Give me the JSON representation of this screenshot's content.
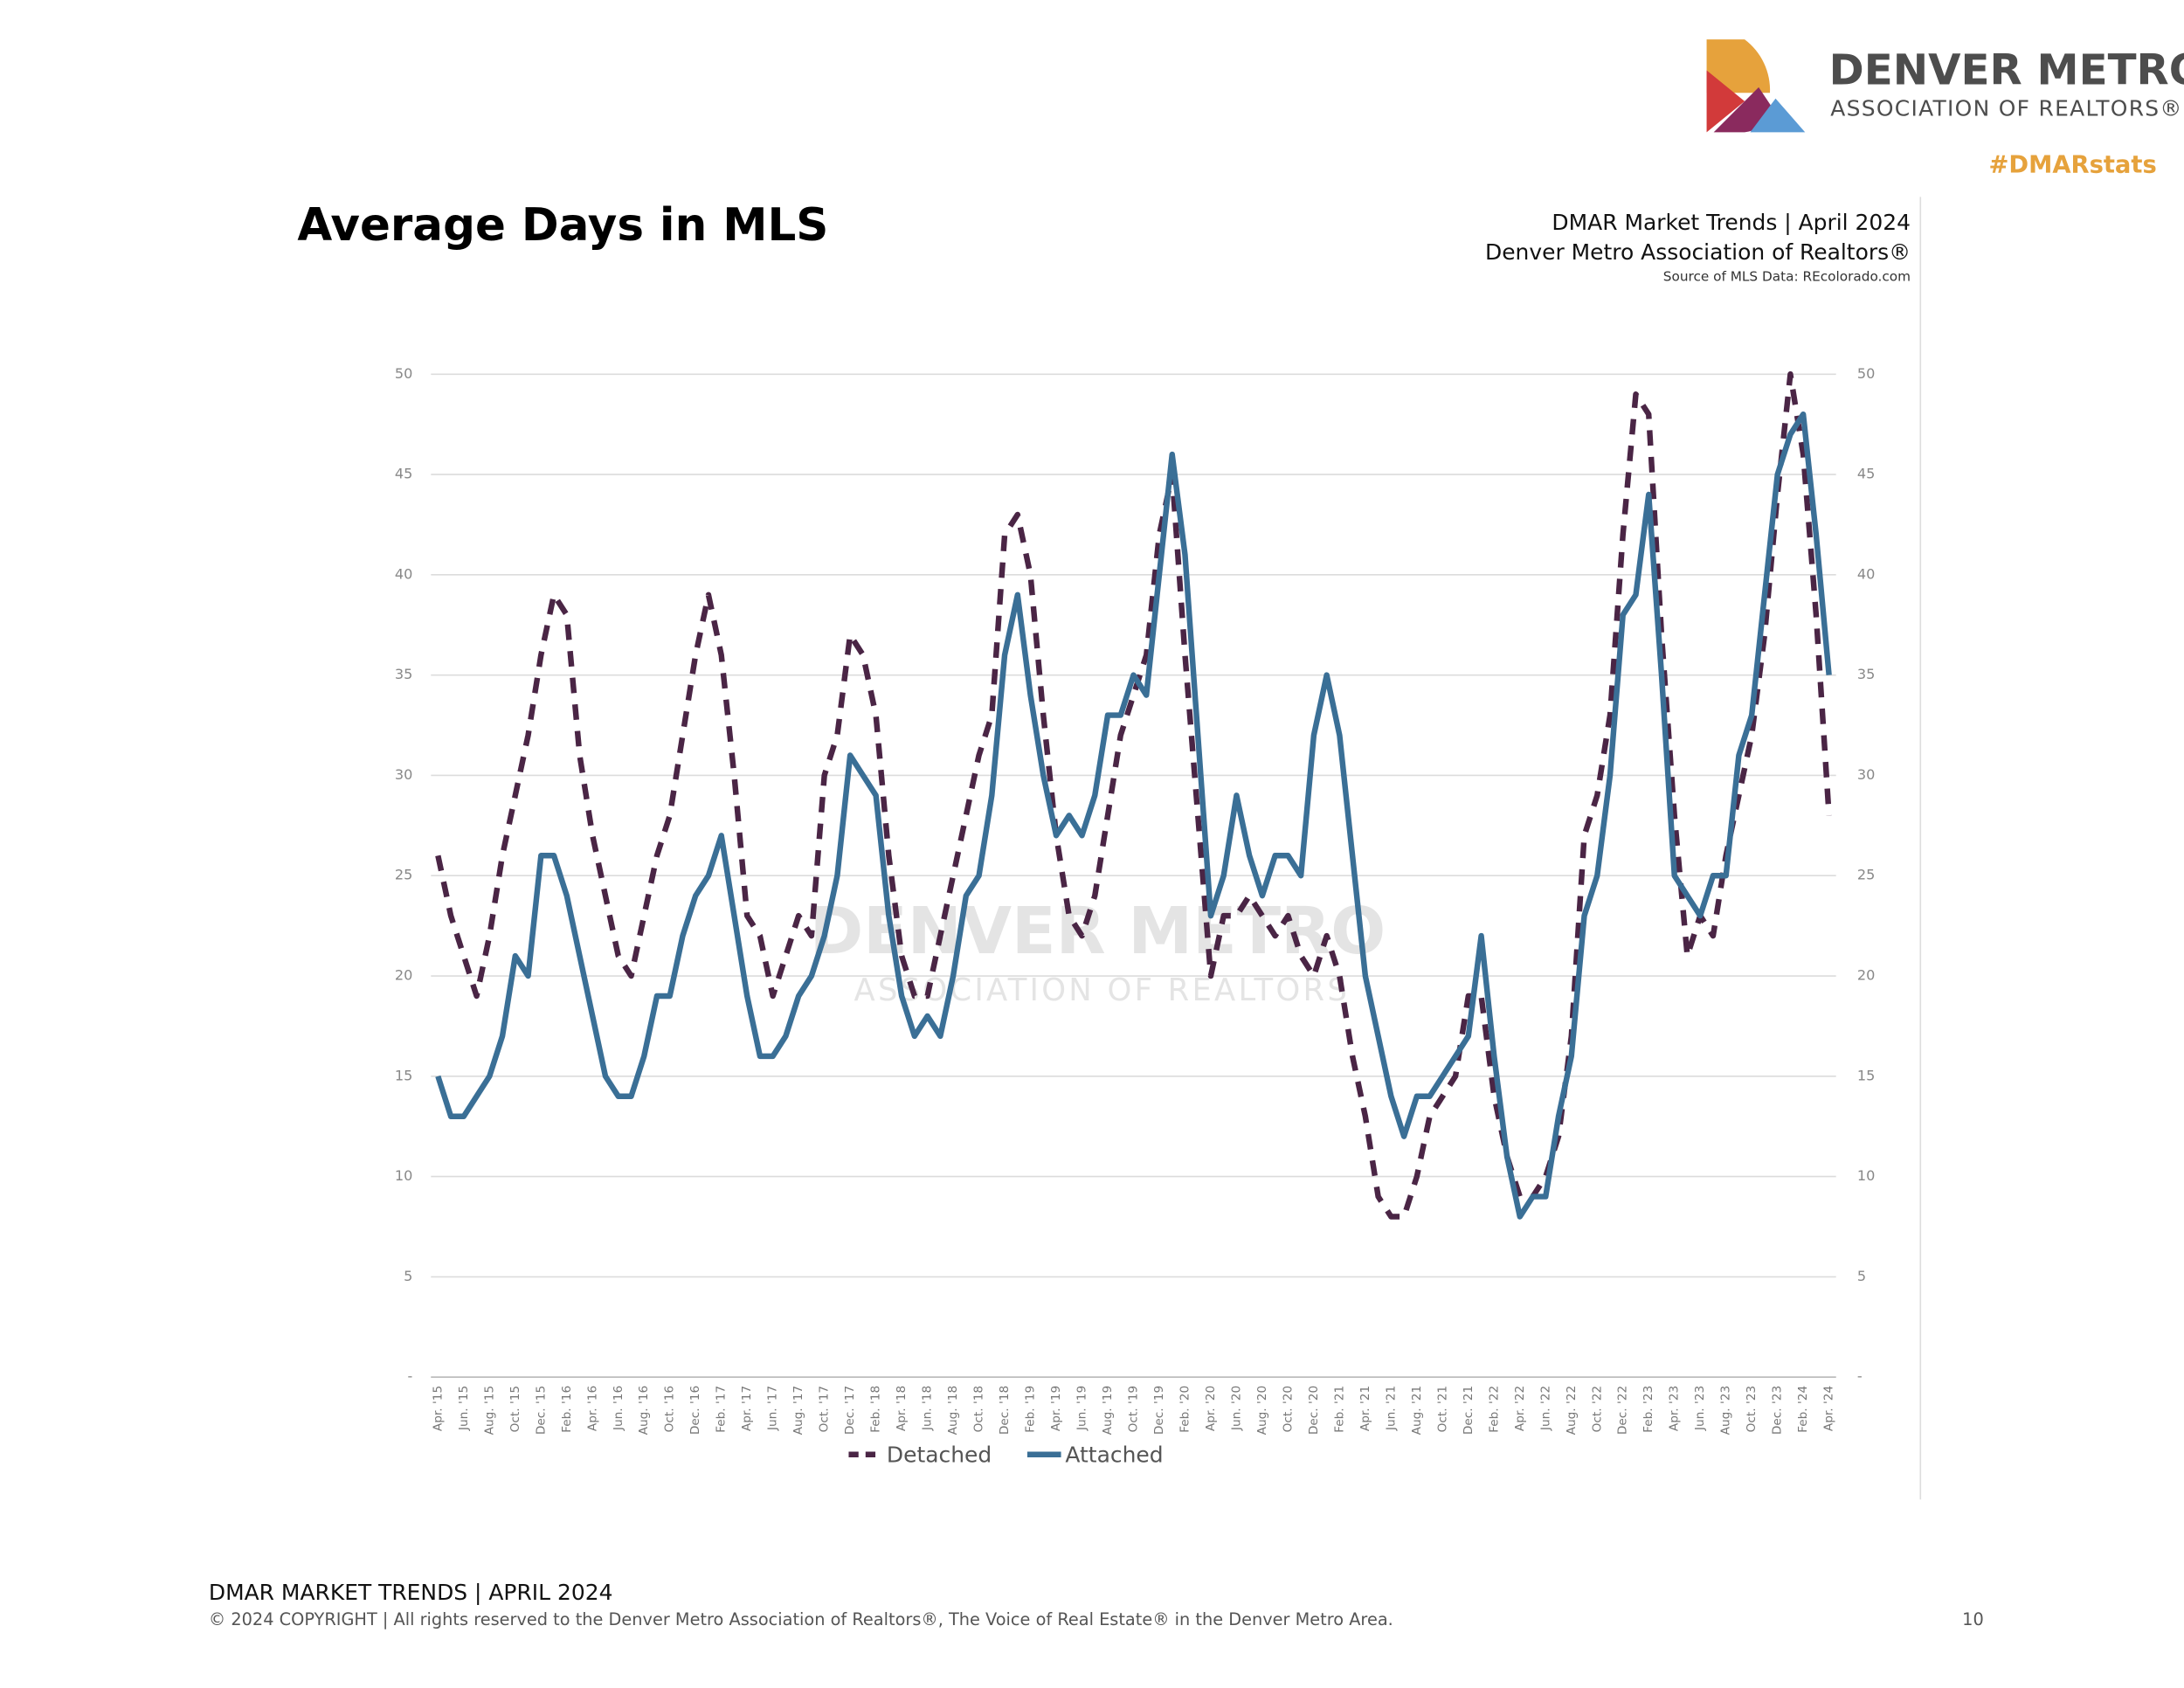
{
  "header": {
    "logo_name": "DENVER METRO",
    "logo_sub": "ASSOCIATION OF REALTORS®",
    "hashtag": "#DMARstats"
  },
  "chart_data": {
    "type": "line",
    "title": "Average Days in MLS",
    "subtitle": "DMAR Market Trends | April 2024",
    "publisher": "Denver Metro Association of Realtors®",
    "source": "Source of MLS Data: REcolorado.com",
    "watermark": [
      "DENVER METRO",
      "ASSOCIATION OF REALTORS"
    ],
    "categories": [
      "Apr. '15",
      null,
      "Jun. '15",
      null,
      "Aug. '15",
      null,
      "Oct. '15",
      null,
      "Dec. '15",
      null,
      "Feb. '16",
      null,
      "Apr. '16",
      null,
      "Jun. '16",
      null,
      "Aug. '16",
      null,
      "Oct. '16",
      null,
      "Dec. '16",
      null,
      "Feb. '17",
      null,
      "Apr. '17",
      null,
      "Jun. '17",
      null,
      "Aug. '17",
      null,
      "Oct. '17",
      null,
      "Dec. '17",
      null,
      "Feb. '18",
      null,
      "Apr. '18",
      null,
      "Jun. '18",
      null,
      "Aug. '18",
      null,
      "Oct. '18",
      null,
      "Dec. '18",
      null,
      "Feb. '19",
      null,
      "Apr. '19",
      null,
      "Jun. '19",
      null,
      "Aug. '19",
      null,
      "Oct. '19",
      null,
      "Dec. '19",
      null,
      "Feb. '20",
      null,
      "Apr. '20",
      null,
      "Jun. '20",
      null,
      "Aug. '20",
      null,
      "Oct. '20",
      null,
      "Dec. '20",
      null,
      "Feb. '21",
      null,
      "Apr. '21",
      null,
      "Jun. '21",
      null,
      "Aug. '21",
      null,
      "Oct. '21",
      null,
      "Dec. '21",
      null,
      "Feb. '22",
      null,
      "Apr. '22",
      null,
      "Jun. '22",
      null,
      "Aug. '22",
      null,
      "Oct. '22",
      null,
      "Dec. '22",
      null,
      "Feb. '23",
      null,
      "Apr. '23",
      null,
      "Jun. '23",
      null,
      "Aug. '23",
      null,
      "Oct. '23",
      null,
      "Dec. '23",
      null,
      "Feb. '24",
      null,
      "Apr. '24"
    ],
    "series": [
      {
        "name": "Detached",
        "color": "#4a2545",
        "dashed": true,
        "values": [
          26,
          23,
          21,
          19,
          22,
          26,
          29,
          32,
          36,
          39,
          38,
          31,
          27,
          24,
          21,
          20,
          23,
          26,
          28,
          32,
          36,
          39,
          36,
          30,
          23,
          22,
          19,
          21,
          23,
          22,
          30,
          32,
          37,
          36,
          33,
          26,
          21,
          19,
          19,
          22,
          25,
          28,
          31,
          33,
          42,
          43,
          40,
          33,
          27,
          23,
          22,
          24,
          28,
          32,
          34,
          36,
          42,
          45,
          36,
          28,
          20,
          23,
          23,
          24,
          23,
          22,
          23,
          21,
          20,
          22,
          20,
          16,
          13,
          9,
          8,
          8,
          10,
          13,
          14,
          15,
          19,
          19,
          14,
          11,
          9,
          9,
          10,
          12,
          17,
          27,
          29,
          33,
          42,
          49,
          48,
          37,
          28,
          21,
          23,
          22,
          26,
          29,
          32,
          37,
          44,
          50,
          46,
          38,
          28
        ]
      },
      {
        "name": "Attached",
        "color": "#3a6f96",
        "dashed": false,
        "values": [
          15,
          13,
          13,
          14,
          15,
          17,
          21,
          20,
          26,
          26,
          24,
          21,
          18,
          15,
          14,
          14,
          16,
          19,
          19,
          22,
          24,
          25,
          27,
          23,
          19,
          16,
          16,
          17,
          19,
          20,
          22,
          25,
          31,
          30,
          29,
          23,
          19,
          17,
          18,
          17,
          20,
          24,
          25,
          29,
          36,
          39,
          34,
          30,
          27,
          28,
          27,
          29,
          33,
          33,
          35,
          34,
          40,
          46,
          41,
          32,
          23,
          25,
          29,
          26,
          24,
          26,
          26,
          25,
          32,
          35,
          32,
          26,
          20,
          17,
          14,
          12,
          14,
          14,
          15,
          16,
          17,
          22,
          16,
          11,
          8,
          9,
          9,
          13,
          16,
          23,
          25,
          30,
          38,
          39,
          44,
          35,
          25,
          24,
          23,
          25,
          25,
          31,
          33,
          39,
          45,
          47,
          48,
          42,
          35
        ]
      }
    ],
    "ylim": [
      0,
      50
    ],
    "yticks": [
      {
        "value": 0,
        "label": "-"
      },
      5,
      10,
      15,
      20,
      25,
      30,
      35,
      40,
      45,
      50
    ],
    "y2lim": [
      0,
      50
    ],
    "y2ticks": [
      {
        "value": 0,
        "label": "-"
      },
      5,
      10,
      15,
      20,
      25,
      30,
      35,
      40,
      45,
      50
    ],
    "grid": true,
    "legend": "bottom"
  },
  "footer": {
    "title": "DMAR MARKET TRENDS | APRIL 2024",
    "copyright": "© 2024 COPYRIGHT | All rights reserved to the Denver Metro Association of Realtors®, The Voice of Real Estate® in the Denver Metro Area.",
    "page": "10"
  }
}
